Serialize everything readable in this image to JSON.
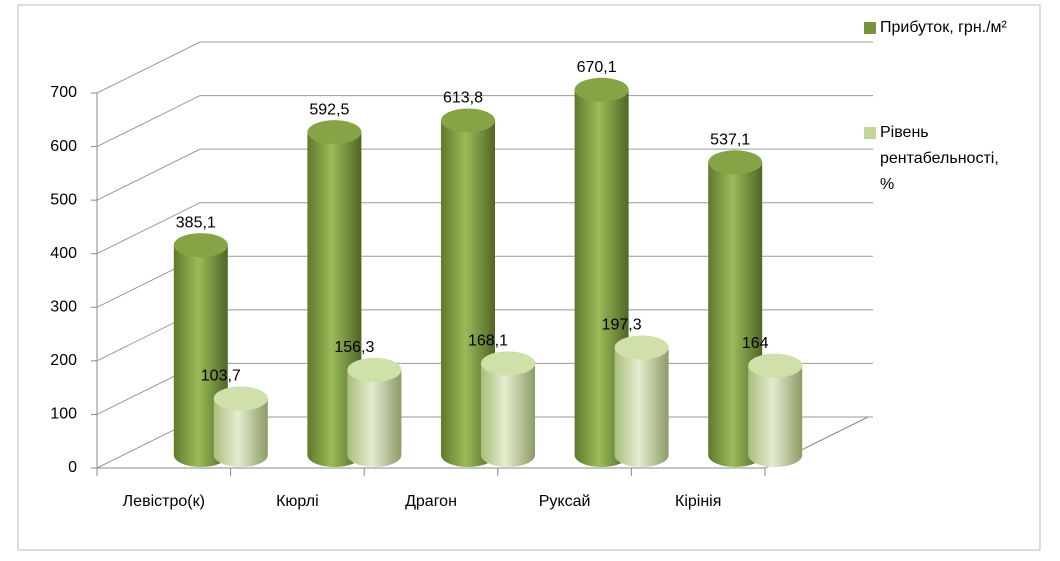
{
  "chart_data": {
    "type": "bar3d",
    "categories": [
      "Левістро(к)",
      "Кюрлі",
      "Драгон",
      "Руксай",
      "Кірінія"
    ],
    "series": [
      {
        "name": "Прибуток, грн./м²",
        "color": "#77933c",
        "values": [
          385.1,
          592.5,
          613.8,
          670.1,
          537.1
        ],
        "value_labels": [
          "385,1",
          "592,5",
          "613,8",
          "670,1",
          "537,1"
        ]
      },
      {
        "name": "Рівень рентабельності, %",
        "color": "#c3d69b",
        "values": [
          103.7,
          156.3,
          168.1,
          197.3,
          164
        ],
        "value_labels": [
          "103,7",
          "156,3",
          "168,1",
          "197,3",
          "164"
        ]
      }
    ],
    "ylim": [
      0,
      700
    ],
    "yticks": [
      0,
      100,
      200,
      300,
      400,
      500,
      600,
      700
    ],
    "grid": true,
    "legend": "right"
  }
}
